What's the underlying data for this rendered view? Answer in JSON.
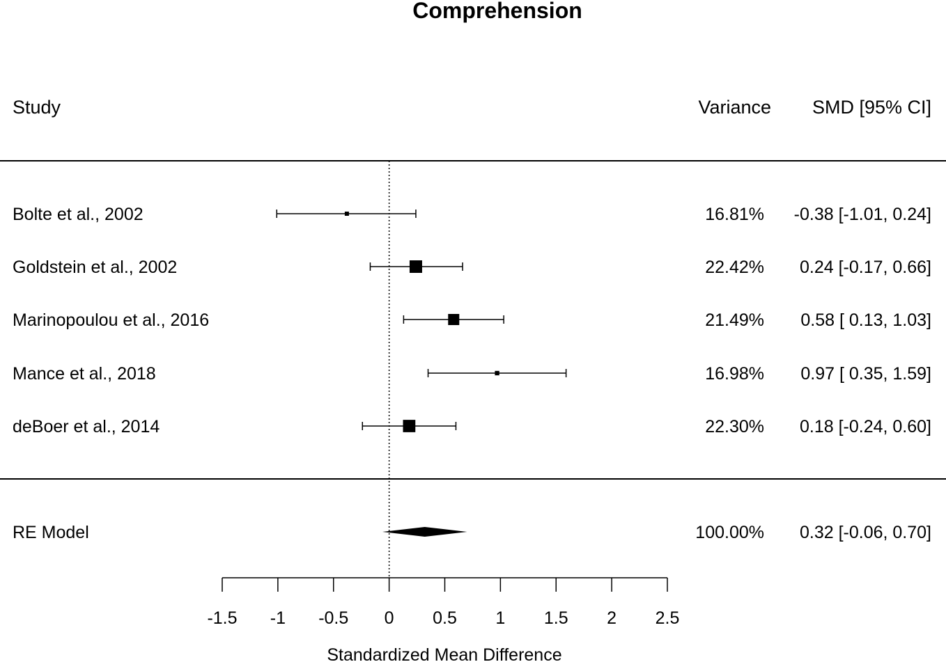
{
  "chart_data": {
    "type": "forest",
    "title": "Comprehension",
    "xlabel": "Standardized Mean Difference",
    "headers": {
      "study": "Study",
      "variance": "Variance",
      "ci": "SMD [95% CI]"
    },
    "xlim": [
      -1.5,
      2.5
    ],
    "ticks": [
      -1.5,
      -1,
      -0.5,
      0,
      0.5,
      1,
      1.5,
      2,
      2.5
    ],
    "tick_labels": [
      "-1.5",
      "-1",
      "-0.5",
      "0",
      "0.5",
      "1",
      "1.5",
      "2",
      "2.5"
    ],
    "reference_line": 0,
    "studies": [
      {
        "label": "Bolte et al., 2002",
        "estimate": -0.38,
        "lower": -1.01,
        "upper": 0.24,
        "weight": "16.81%",
        "ci_text": "-0.38 [-1.01, 0.24]",
        "weight_value": 16.81
      },
      {
        "label": "Goldstein et al., 2002",
        "estimate": 0.24,
        "lower": -0.17,
        "upper": 0.66,
        "weight": "22.42%",
        "ci_text": "0.24 [-0.17, 0.66]",
        "weight_value": 22.42
      },
      {
        "label": "Marinopoulou et al., 2016",
        "estimate": 0.58,
        "lower": 0.13,
        "upper": 1.03,
        "weight": "21.49%",
        "ci_text": "0.58 [ 0.13, 1.03]",
        "weight_value": 21.49
      },
      {
        "label": "Mance et al., 2018",
        "estimate": 0.97,
        "lower": 0.35,
        "upper": 1.59,
        "weight": "16.98%",
        "ci_text": "0.97 [ 0.35, 1.59]",
        "weight_value": 16.98
      },
      {
        "label": "deBoer et al., 2014",
        "estimate": 0.18,
        "lower": -0.24,
        "upper": 0.6,
        "weight": "22.30%",
        "ci_text": "0.18 [-0.24, 0.60]",
        "weight_value": 22.3
      }
    ],
    "summary": {
      "label": "RE Model",
      "estimate": 0.32,
      "lower": -0.06,
      "upper": 0.7,
      "weight": "100.00%",
      "ci_text": "0.32 [-0.06, 0.70]"
    }
  }
}
